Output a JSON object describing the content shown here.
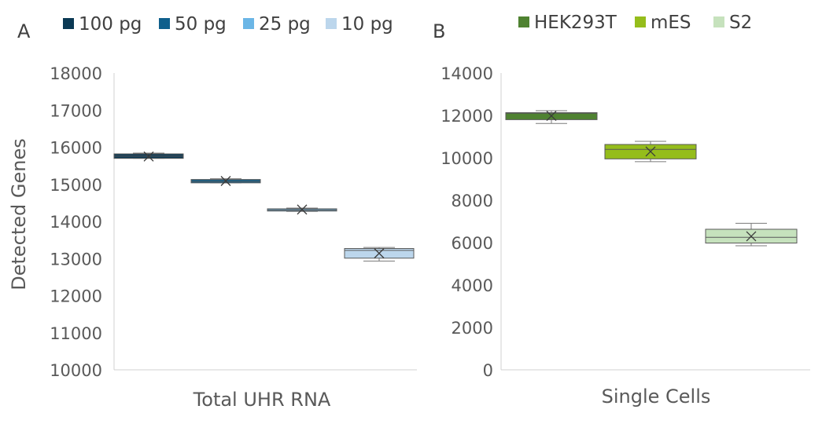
{
  "chart_data": [
    {
      "panel_label": "A",
      "type": "box",
      "xlabel": "Total UHR RNA",
      "ylabel": "Detected Genes",
      "ylim": [
        10000,
        18000
      ],
      "yticks": [
        10000,
        11000,
        12000,
        13000,
        14000,
        15000,
        16000,
        17000,
        18000
      ],
      "legend_position": "top",
      "series": [
        {
          "name": "100 pg",
          "color": "#0b3954",
          "min": 15700,
          "q1": 15700,
          "median": 15760,
          "q3": 15820,
          "max": 15840,
          "mean": 15750
        },
        {
          "name": "50 pg",
          "color": "#0f5f8c",
          "min": 15040,
          "q1": 15040,
          "median": 15080,
          "q3": 15130,
          "max": 15150,
          "mean": 15090
        },
        {
          "name": "25 pg",
          "color": "#6bb6e6",
          "min": 14270,
          "q1": 14280,
          "median": 14310,
          "q3": 14340,
          "max": 14360,
          "mean": 14320
        },
        {
          "name": "10 pg",
          "color": "#bcd6ec",
          "min": 12930,
          "q1": 13010,
          "median": 13220,
          "q3": 13270,
          "max": 13300,
          "mean": 13140
        }
      ]
    },
    {
      "panel_label": "B",
      "type": "box",
      "xlabel": "Single Cells",
      "ylabel": "",
      "ylim": [
        0,
        14000
      ],
      "yticks": [
        0,
        2000,
        4000,
        6000,
        8000,
        10000,
        12000,
        14000
      ],
      "legend_position": "top",
      "series": [
        {
          "name": "HEK293T",
          "color": "#4f8231",
          "min": 11620,
          "q1": 11800,
          "median": 12100,
          "q3": 12130,
          "max": 12220,
          "mean": 11980
        },
        {
          "name": "mES",
          "color": "#95bd1b",
          "min": 9820,
          "q1": 9950,
          "median": 10400,
          "q3": 10630,
          "max": 10780,
          "mean": 10300
        },
        {
          "name": "S2",
          "color": "#c6e2bd",
          "min": 5850,
          "q1": 5980,
          "median": 6250,
          "q3": 6630,
          "max": 6910,
          "mean": 6300
        }
      ]
    }
  ]
}
